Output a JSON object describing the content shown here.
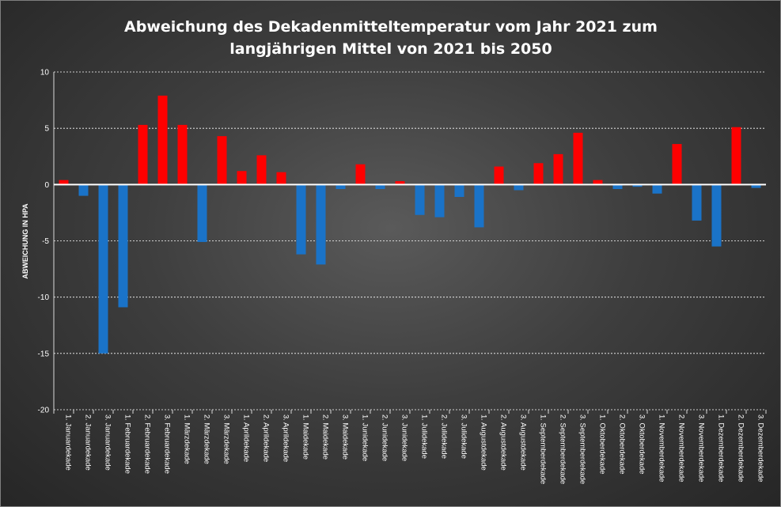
{
  "chart_data": {
    "type": "bar",
    "title_lines": [
      "Abweichung des Dekadenmitteltemperatur vom Jahr 2021 zum",
      "langjährigen Mittel von 2021 bis 2050"
    ],
    "ylabel": "ABWEICHUNG IN HPA",
    "xlabel": "",
    "ylim": [
      -20,
      10
    ],
    "yticks": [
      10,
      5,
      0,
      -5,
      -10,
      -15,
      -20
    ],
    "grid": true,
    "legend": "none",
    "categories": [
      "1. Januardekade",
      "2. Januardekade",
      "3. Januardekade",
      "1. Februardekade",
      "2. Februardekade",
      "3. Februardekade",
      "1. Märzdekade",
      "2. Märzdekade",
      "3. Märzdekade",
      "1. Aprildekade",
      "2. Aprildekade",
      "3. Aprildekade",
      "1. Maidekade",
      "2. Maidekade",
      "3. Maidekade",
      "1. Junidekade",
      "2. Junidekade",
      "3. Junidekade",
      "1. Julidekade",
      "2. Julidekade",
      "3. Julidekade",
      "1. Augustdekade",
      "2. Augustdekade",
      "3. Augustdekade",
      "1. Septemberdekade",
      "2. Septemberdekade",
      "3. Septemberdekade",
      "1. Oktoberdekade",
      "2. Oktoberdekade",
      "3. Oktoberdekade",
      "1. Novemberdekade",
      "2. Novemberdekade",
      "3. Novemberdekade",
      "1. Dezemberdekade",
      "2. Dezemberdekade",
      "3. Dezemberdekade"
    ],
    "values": [
      0.4,
      -1.0,
      -15.0,
      -10.9,
      5.3,
      7.9,
      5.3,
      -5.1,
      4.3,
      1.2,
      2.6,
      1.1,
      -6.2,
      -7.1,
      -0.4,
      1.8,
      -0.4,
      0.3,
      -2.7,
      -2.9,
      -1.1,
      -3.8,
      1.6,
      -0.5,
      1.9,
      2.7,
      4.6,
      0.4,
      -0.4,
      -0.2,
      -0.8,
      3.6,
      -3.2,
      -5.5,
      5.1,
      -0.3
    ],
    "colors": {
      "positive": "#ff0000",
      "negative": "#1a73c8"
    }
  }
}
